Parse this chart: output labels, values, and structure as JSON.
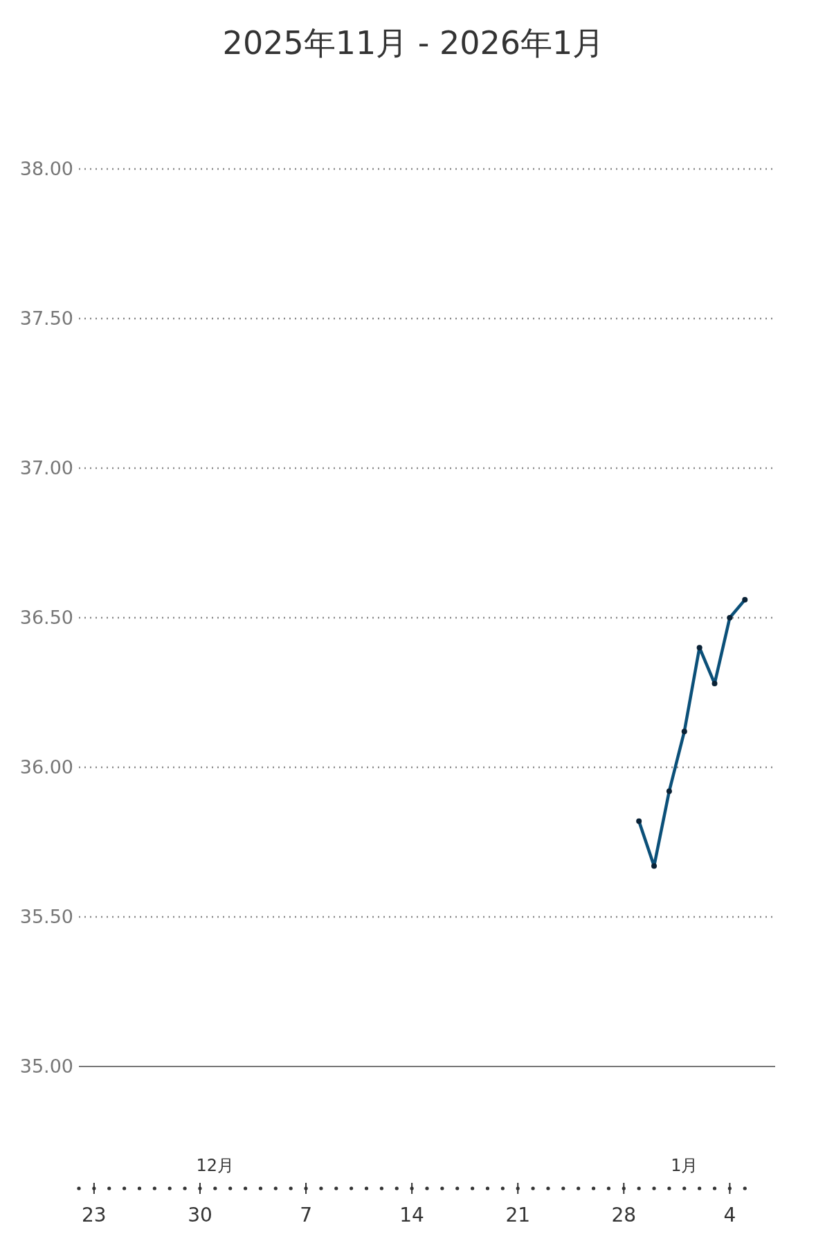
{
  "chart_data": {
    "type": "line",
    "title": "2025年11月 - 2026年1月",
    "x": [
      "2025-12-29",
      "2025-12-30",
      "2025-12-31",
      "2026-01-01",
      "2026-01-02",
      "2026-01-03",
      "2026-01-04",
      "2026-01-05"
    ],
    "series": [
      {
        "color": "#0b5079",
        "values": [
          35.82,
          35.67,
          35.92,
          36.12,
          36.4,
          36.28,
          36.5,
          36.56
        ]
      }
    ],
    "marker": "circle",
    "line_style": "solid",
    "grid": "y",
    "ylim": [
      35,
      38
    ],
    "yticks": [
      {
        "value": 35,
        "label": "35.00"
      },
      {
        "value": 35.5,
        "label": "35.50"
      },
      {
        "value": 36,
        "label": "36.00"
      },
      {
        "value": 36.5,
        "label": "36.50"
      },
      {
        "value": 37,
        "label": "37.00"
      },
      {
        "value": 37.5,
        "label": "37.50"
      },
      {
        "value": 38,
        "label": "38.00"
      }
    ],
    "xlim": [
      "2025-11-22",
      "2026-01-07"
    ],
    "xticks": [
      {
        "value": "2025-11-23",
        "label": "23"
      },
      {
        "value": "2025-11-30",
        "label": "30"
      },
      {
        "value": "2025-12-07",
        "label": "7"
      },
      {
        "value": "2025-12-14",
        "label": "14"
      },
      {
        "value": "2025-12-21",
        "label": "21"
      },
      {
        "value": "2025-12-28",
        "label": "28"
      },
      {
        "value": "2026-01-04",
        "label": "4"
      }
    ],
    "x2lim": [
      "2025-11-22",
      "2026-01-07"
    ],
    "x2ticks": [
      {
        "value": "2025-12-01",
        "label": "12月"
      },
      {
        "value": "2026-01-01",
        "label": "1月"
      }
    ]
  }
}
